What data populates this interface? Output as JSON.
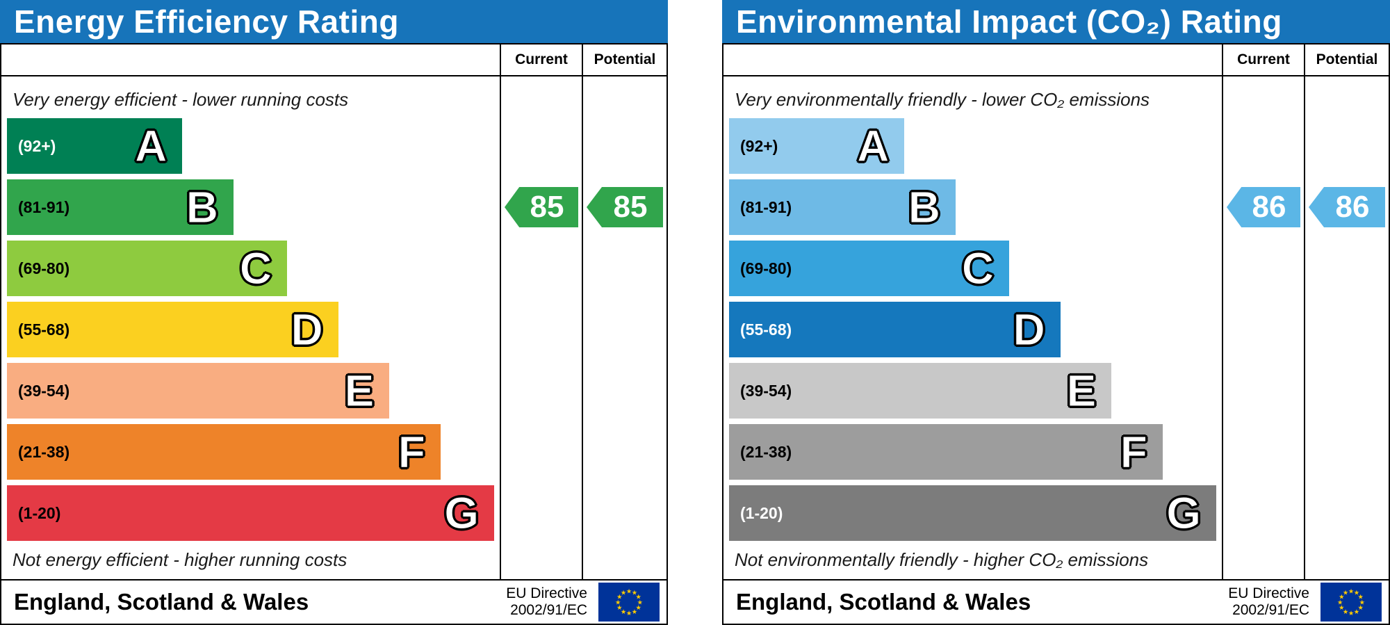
{
  "charts": [
    {
      "title": "Energy Efficiency Rating",
      "header_color": "#1774ba",
      "columns": {
        "current": "Current",
        "potential": "Potential"
      },
      "top_caption": "Very energy efficient - lower running costs",
      "bottom_caption": "Not energy efficient - higher running costs",
      "bands": [
        {
          "letter": "A",
          "range": "(92+)",
          "color": "#008054",
          "width_pct": 36,
          "range_color": "#ffffff"
        },
        {
          "letter": "B",
          "range": "(81-91)",
          "color": "#31a54c",
          "width_pct": 46.5,
          "range_color": "#000000"
        },
        {
          "letter": "C",
          "range": "(69-80)",
          "color": "#8ecb3f",
          "width_pct": 57.5,
          "range_color": "#000000"
        },
        {
          "letter": "D",
          "range": "(55-68)",
          "color": "#fbd020",
          "width_pct": 68,
          "range_color": "#000000"
        },
        {
          "letter": "E",
          "range": "(39-54)",
          "color": "#f9ad81",
          "width_pct": 78.5,
          "range_color": "#000000"
        },
        {
          "letter": "F",
          "range": "(21-38)",
          "color": "#ee8329",
          "width_pct": 89,
          "range_color": "#000000"
        },
        {
          "letter": "G",
          "range": "(1-20)",
          "color": "#e43a45",
          "width_pct": 100,
          "range_color": "#000000"
        }
      ],
      "current": {
        "value": "85",
        "band": "B",
        "color": "#31a54c"
      },
      "potential": {
        "value": "85",
        "band": "B",
        "color": "#31a54c"
      },
      "footer": {
        "region": "England, Scotland & Wales",
        "directive_line1": "EU Directive",
        "directive_line2": "2002/91/EC"
      }
    },
    {
      "title": "Environmental Impact (CO₂) Rating",
      "header_color": "#1774ba",
      "columns": {
        "current": "Current",
        "potential": "Potential"
      },
      "top_caption": "Very environmentally friendly - lower CO₂ emissions",
      "bottom_caption": "Not environmentally friendly - higher CO₂ emissions",
      "bands": [
        {
          "letter": "A",
          "range": "(92+)",
          "color": "#92cbed",
          "width_pct": 36,
          "range_color": "#000000"
        },
        {
          "letter": "B",
          "range": "(81-91)",
          "color": "#6ebae6",
          "width_pct": 46.5,
          "range_color": "#000000"
        },
        {
          "letter": "C",
          "range": "(69-80)",
          "color": "#36a3dc",
          "width_pct": 57.5,
          "range_color": "#000000"
        },
        {
          "letter": "D",
          "range": "(55-68)",
          "color": "#1578bd",
          "width_pct": 68,
          "range_color": "#ffffff"
        },
        {
          "letter": "E",
          "range": "(39-54)",
          "color": "#c8c8c8",
          "width_pct": 78.5,
          "range_color": "#000000"
        },
        {
          "letter": "F",
          "range": "(21-38)",
          "color": "#9d9d9d",
          "width_pct": 89,
          "range_color": "#000000"
        },
        {
          "letter": "G",
          "range": "(1-20)",
          "color": "#7c7c7c",
          "width_pct": 100,
          "range_color": "#ffffff"
        }
      ],
      "current": {
        "value": "86",
        "band": "B",
        "color": "#5bb6e6"
      },
      "potential": {
        "value": "86",
        "band": "B",
        "color": "#5bb6e6"
      },
      "footer": {
        "region": "England, Scotland & Wales",
        "directive_line1": "EU Directive",
        "directive_line2": "2002/91/EC"
      }
    }
  ],
  "chart_data": [
    {
      "type": "bar",
      "title": "Energy Efficiency Rating",
      "categories": [
        "A",
        "B",
        "C",
        "D",
        "E",
        "F",
        "G"
      ],
      "band_ranges": [
        "92+",
        "81-91",
        "69-80",
        "55-68",
        "39-54",
        "21-38",
        "1-20"
      ],
      "values": [
        36,
        46.5,
        57.5,
        68,
        78.5,
        89,
        100
      ],
      "annotations": [
        {
          "label": "Current",
          "value": 85,
          "band": "B"
        },
        {
          "label": "Potential",
          "value": 85,
          "band": "B"
        }
      ],
      "xlabel": "",
      "ylabel": "",
      "legend_position": "none"
    },
    {
      "type": "bar",
      "title": "Environmental Impact (CO₂) Rating",
      "categories": [
        "A",
        "B",
        "C",
        "D",
        "E",
        "F",
        "G"
      ],
      "band_ranges": [
        "92+",
        "81-91",
        "69-80",
        "55-68",
        "39-54",
        "21-38",
        "1-20"
      ],
      "values": [
        36,
        46.5,
        57.5,
        68,
        78.5,
        89,
        100
      ],
      "annotations": [
        {
          "label": "Current",
          "value": 86,
          "band": "B"
        },
        {
          "label": "Potential",
          "value": 86,
          "band": "B"
        }
      ],
      "xlabel": "",
      "ylabel": "",
      "legend_position": "none"
    }
  ]
}
